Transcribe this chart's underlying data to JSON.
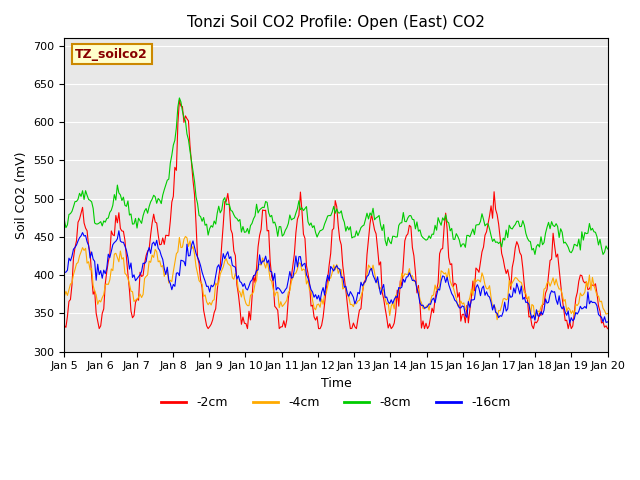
{
  "title": "Tonzi Soil CO2 Profile: Open (East) CO2",
  "xlabel": "Time",
  "ylabel": "Soil CO2 (mV)",
  "ylim": [
    300,
    710
  ],
  "yticks": [
    300,
    350,
    400,
    450,
    500,
    550,
    600,
    650,
    700
  ],
  "bg_color": "#e8e8e8",
  "label_box_text": "TZ_soilco2",
  "label_box_facecolor": "#ffffcc",
  "label_box_edgecolor": "#cc8800",
  "legend_entries": [
    "-2cm",
    "-4cm",
    "-8cm",
    "-16cm"
  ],
  "line_colors": [
    "#ff0000",
    "#ffaa00",
    "#00cc00",
    "#0000ff"
  ],
  "xtick_labels": [
    "Jan 5",
    "Jan 6",
    "Jan 7",
    "Jan 8",
    "Jan 9",
    "Jan 10",
    "Jan 11",
    "Jan 12",
    "Jan 13",
    "Jan 14",
    "Jan 15",
    "Jan 16",
    "Jan 17",
    "Jan 18",
    "Jan 19",
    "Jan 20"
  ]
}
